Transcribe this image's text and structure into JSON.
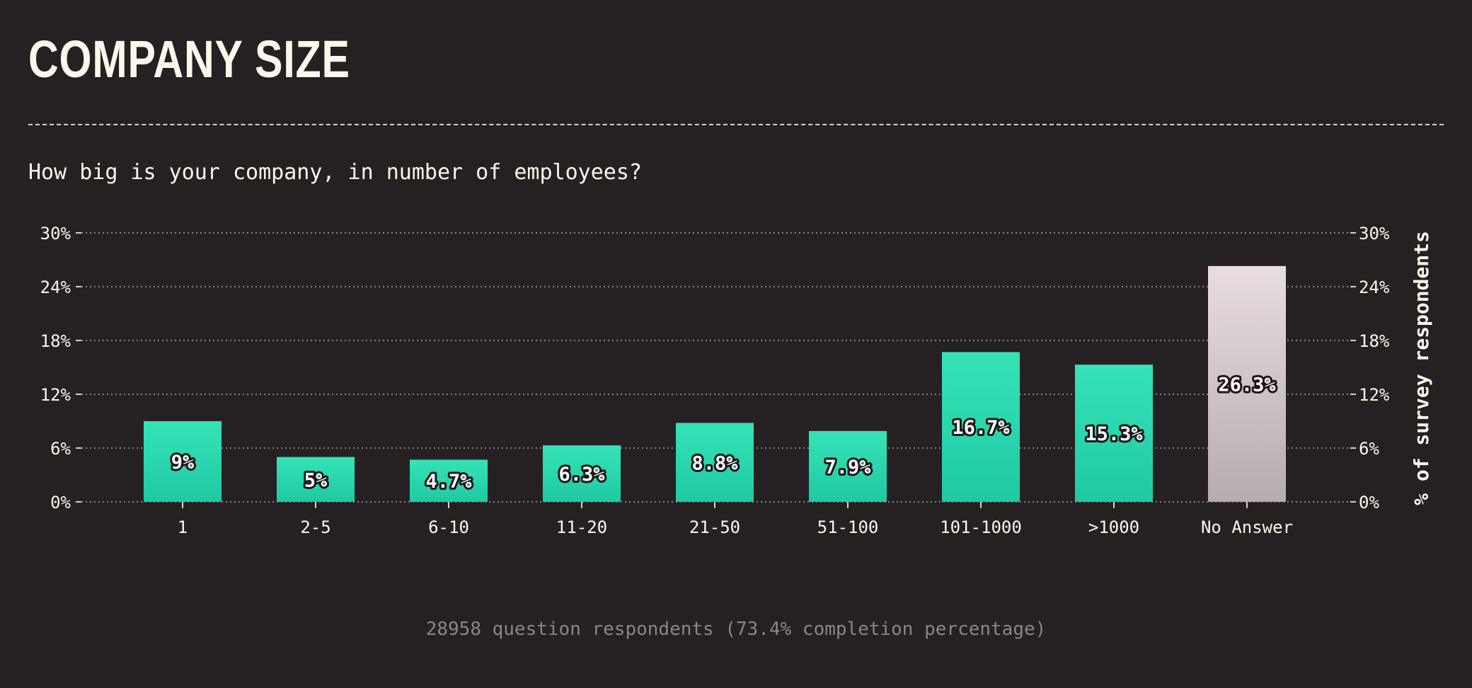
{
  "page": {
    "title": "COMPANY SIZE",
    "question": "How big is your company, in number of employees?",
    "footnote": "28958 question respondents (73.4% completion percentage)"
  },
  "colors": {
    "background": "#252122",
    "text": "#fdf6ea",
    "bar_top": "#36e3b7",
    "bar_bottom": "#1fc9a3",
    "no_answer_top": "#e8dde1",
    "no_answer_bottom": "#b6acb0",
    "grid": "#8a8482",
    "footnote": "#8b8583"
  },
  "chart_data": {
    "type": "bar",
    "categories": [
      "1",
      "2-5",
      "6-10",
      "11-20",
      "21-50",
      "51-100",
      "101-1000",
      ">1000",
      "No Answer"
    ],
    "values": [
      9,
      5,
      4.7,
      6.3,
      8.8,
      7.9,
      16.7,
      15.3,
      26.3
    ],
    "data_labels": [
      "9%",
      "5%",
      "4.7%",
      "6.3%",
      "8.8%",
      "7.9%",
      "16.7%",
      "15.3%",
      "26.3%"
    ],
    "ylim": [
      0,
      30
    ],
    "yticks": [
      "0%",
      "6%",
      "12%",
      "18%",
      "24%",
      "30%"
    ],
    "ylabel": "% of survey respondents",
    "grid": true,
    "axes": "both-sides"
  }
}
